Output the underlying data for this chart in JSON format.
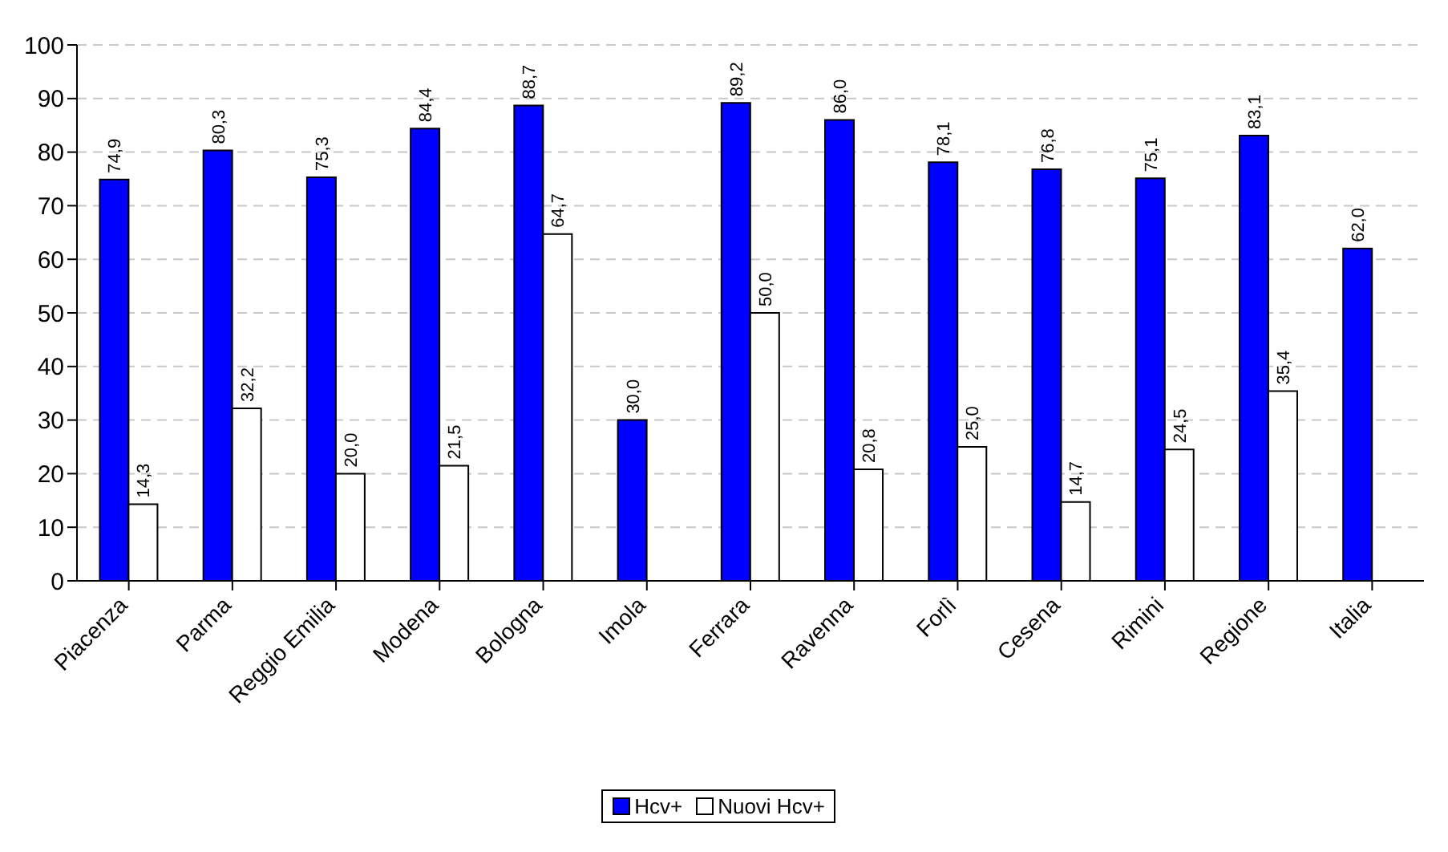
{
  "chart_data": {
    "type": "bar",
    "categories": [
      "Piacenza",
      "Parma",
      "Reggio Emilia",
      "Modena",
      "Bologna",
      "Imola",
      "Ferrara",
      "Ravenna",
      "Forlì",
      "Cesena",
      "Rimini",
      "Regione",
      "Italia"
    ],
    "series": [
      {
        "name": "Hcv+",
        "color": "#0000ff",
        "values": [
          74.9,
          80.3,
          75.3,
          84.4,
          88.7,
          30.0,
          89.2,
          86.0,
          78.1,
          76.8,
          75.1,
          83.1,
          62.0
        ],
        "value_labels": [
          "74,9",
          "80,3",
          "75,3",
          "84,4",
          "88,7",
          "30,0",
          "89,2",
          "86,0",
          "78,1",
          "76,8",
          "75,1",
          "83,1",
          "62,0"
        ]
      },
      {
        "name": "Nuovi Hcv+",
        "color": "#ffffff",
        "values": [
          14.3,
          32.2,
          20.0,
          21.5,
          64.7,
          null,
          50.0,
          20.8,
          25.0,
          14.7,
          24.5,
          35.4,
          null
        ],
        "value_labels": [
          "14,3",
          "32,2",
          "20,0",
          "21,5",
          "64,7",
          null,
          "50,0",
          "20,8",
          "25,0",
          "14,7",
          "24,5",
          "35,4",
          null
        ]
      }
    ],
    "ylim": [
      0,
      100
    ],
    "yticks": [
      0,
      10,
      20,
      30,
      40,
      50,
      60,
      70,
      80,
      90,
      100
    ],
    "grid": "y",
    "legend": "bottom"
  }
}
